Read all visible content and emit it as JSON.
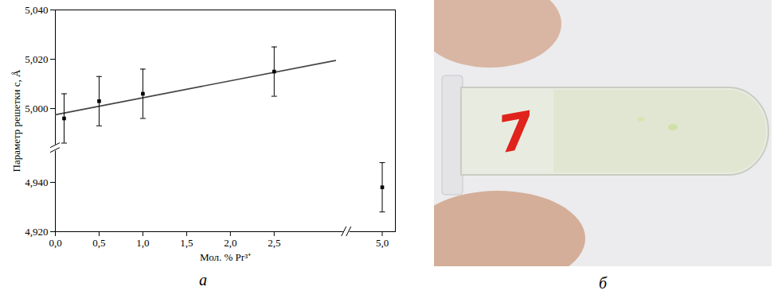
{
  "chart_data": {
    "type": "scatter",
    "panel_label": "а",
    "xlabel": "Мол. % Pr³⁺",
    "ylabel": "Параметр решетки c, Å",
    "x": [
      0.1,
      0.5,
      1.0,
      2.5,
      5.0
    ],
    "values": [
      4.996,
      5.003,
      5.006,
      5.015,
      4.938
    ],
    "errors": [
      0.01,
      0.01,
      0.01,
      0.01,
      0.01
    ],
    "color": "#000000",
    "marker": "square",
    "fit_line": {
      "x": [
        0,
        3.2
      ],
      "values": [
        4.9975,
        5.0195
      ],
      "color": "#444444",
      "line_style": "solid"
    },
    "xlim": [
      0,
      5.15
    ],
    "ylim": [
      4.92,
      5.04
    ],
    "x_break": [
      3.3,
      4.62
    ],
    "y_break": [
      4.953,
      4.985
    ],
    "xticks": [
      {
        "value": 0,
        "label": "0,0"
      },
      {
        "value": 0.5,
        "label": "0,5"
      },
      {
        "value": 1,
        "label": "1,0"
      },
      {
        "value": 1.5,
        "label": "1,5"
      },
      {
        "value": 2,
        "label": "2,0"
      },
      {
        "value": 2.5,
        "label": "2,5"
      },
      {
        "value": 5,
        "label": "5,0"
      }
    ],
    "yticks": [
      {
        "value": 4.92,
        "label": "4,920"
      },
      {
        "value": 4.94,
        "label": "4,940"
      },
      {
        "value": 5.0,
        "label": "5,000"
      },
      {
        "value": 5.02,
        "label": "5,020"
      },
      {
        "value": 5.04,
        "label": "5,040"
      }
    ],
    "grid": false
  },
  "photo": {
    "panel_label": "б",
    "label": "7"
  }
}
